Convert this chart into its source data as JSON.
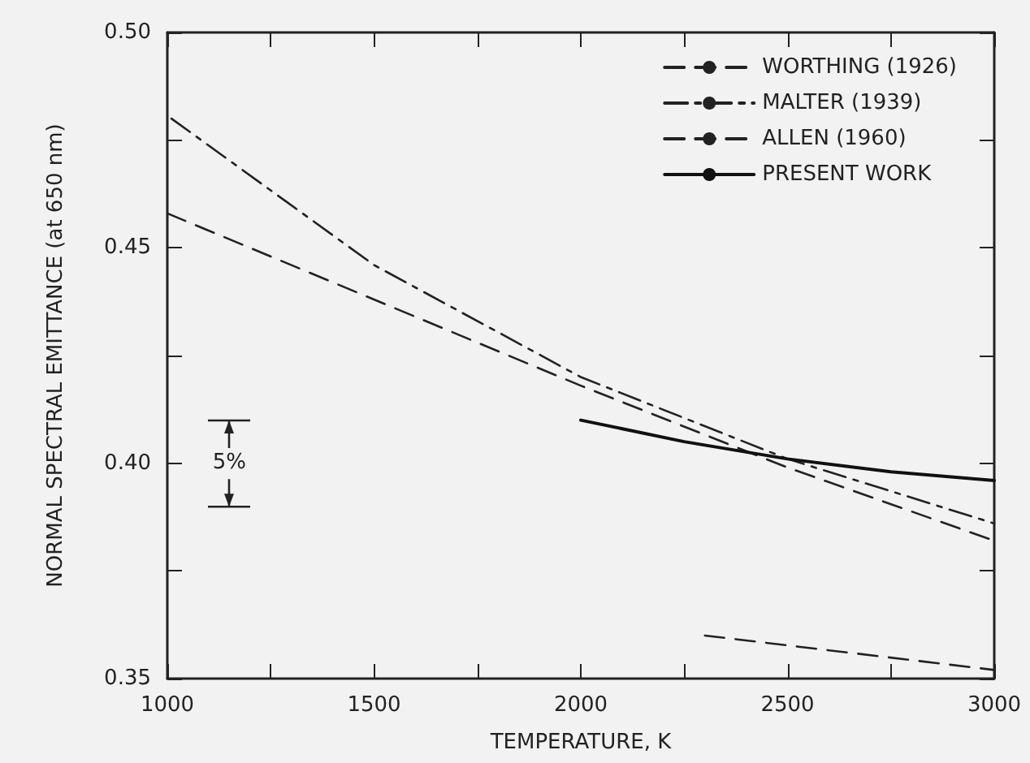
{
  "chart_data": {
    "type": "line",
    "xlabel": "TEMPERATURE, K",
    "ylabel": "NORMAL SPECTRAL EMITTANCE (at 650 nm)",
    "xlim": [
      1000,
      3000
    ],
    "xticks": [
      1000,
      {
        "value": 1250,
        "label": null
      },
      1500,
      {
        "value": 1750,
        "label": null
      },
      2000,
      {
        "value": 2250,
        "label": null
      },
      2500,
      {
        "value": 2750,
        "label": null
      },
      3000
    ],
    "ylim": [
      0.35,
      0.5
    ],
    "yticks": [
      {
        "value": 0.35,
        "label": "0.35"
      },
      {
        "value": 0.375,
        "label": null
      },
      {
        "value": 0.4,
        "label": "0.40"
      },
      {
        "value": 0.425,
        "label": null
      },
      {
        "value": 0.45,
        "label": "0.45"
      },
      {
        "value": 0.475,
        "label": null
      },
      {
        "value": 0.5,
        "label": "0.50"
      }
    ],
    "grid": false,
    "legend": "top right",
    "marker": "none",
    "annotations": [
      "5%"
    ],
    "series": [
      {
        "name": "WORTHING (1926)",
        "color": "#222222",
        "line_style": "dashed",
        "x": [
          1000,
          1500,
          2000,
          2500,
          3000
        ],
        "values": [
          0.458,
          0.438,
          0.418,
          0.399,
          0.382
        ]
      },
      {
        "name": "MALTER (1939)",
        "color": "#222222",
        "line_style": "dashdot",
        "x": [
          1010,
          1500,
          2000,
          2500,
          3000
        ],
        "values": [
          0.48,
          0.446,
          0.42,
          0.401,
          0.386
        ]
      },
      {
        "name": "ALLEN (1960)",
        "color": "#222222",
        "line_style": "dashed",
        "x": [
          2300,
          3000
        ],
        "values": [
          0.36,
          0.352
        ]
      },
      {
        "name": "PRESENT WORK",
        "color": "#111111",
        "line_style": "solid",
        "x": [
          2000,
          2250,
          2500,
          2750,
          3000
        ],
        "values": [
          0.41,
          0.405,
          0.401,
          0.398,
          0.396
        ]
      }
    ]
  }
}
